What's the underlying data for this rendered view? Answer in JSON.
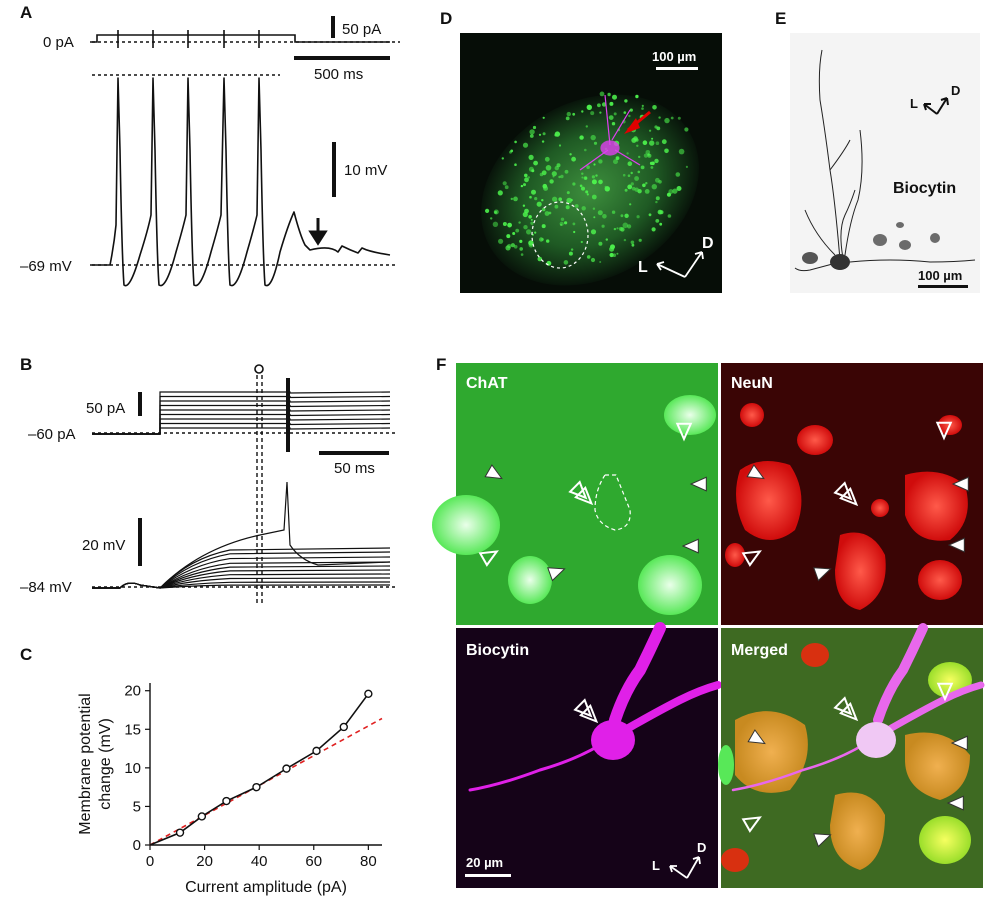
{
  "panels": {
    "A": {
      "label": "A",
      "current_zero": "0 pA",
      "current_scale": "50 pA",
      "time_scale": "500 ms",
      "voltage_scale": "10 mV",
      "baseline_voltage": "–69 mV"
    },
    "B": {
      "label": "B",
      "current_baseline": "–60 pA",
      "current_scale": "50 pA",
      "time_scale": "50 ms",
      "voltage_scale": "20 mV",
      "baseline_voltage": "–84 mV"
    },
    "C": {
      "label": "C"
    },
    "D": {
      "label": "D",
      "scale": "100 µm",
      "axis_l": "L",
      "axis_d": "D"
    },
    "E": {
      "label": "E",
      "scale": "100 µm",
      "axis_l": "L",
      "axis_d": "D",
      "stain": "Biocytin"
    },
    "F": {
      "label": "F",
      "chat": "ChAT",
      "neun": "NeuN",
      "biocytin": "Biocytin",
      "merged": "Merged",
      "scale": "20 µm",
      "axis_l": "L",
      "axis_d": "D"
    }
  },
  "colors": {
    "green": "#2fd22f",
    "red": "#e01010",
    "magenta": "#e020e8",
    "fit": "#e02020"
  },
  "chart_data": {
    "type": "line",
    "xlabel": "Current amplitude (pA)",
    "ylabel_lines": [
      "Membrane potential",
      "change (mV)"
    ],
    "xlim": [
      0,
      85
    ],
    "ylim": [
      0,
      21
    ],
    "xticks": [
      0,
      20,
      40,
      60,
      80
    ],
    "yticks": [
      0,
      5,
      10,
      15,
      20
    ],
    "series": [
      {
        "x": [
          0,
          11,
          19,
          28,
          39,
          50,
          61,
          71,
          80
        ],
        "y": [
          0,
          1.6,
          3.7,
          5.7,
          7.5,
          9.9,
          12.2,
          15.3,
          19.6
        ]
      }
    ],
    "fit_line": {
      "x": [
        0,
        85
      ],
      "y": [
        0,
        16.4
      ]
    }
  }
}
